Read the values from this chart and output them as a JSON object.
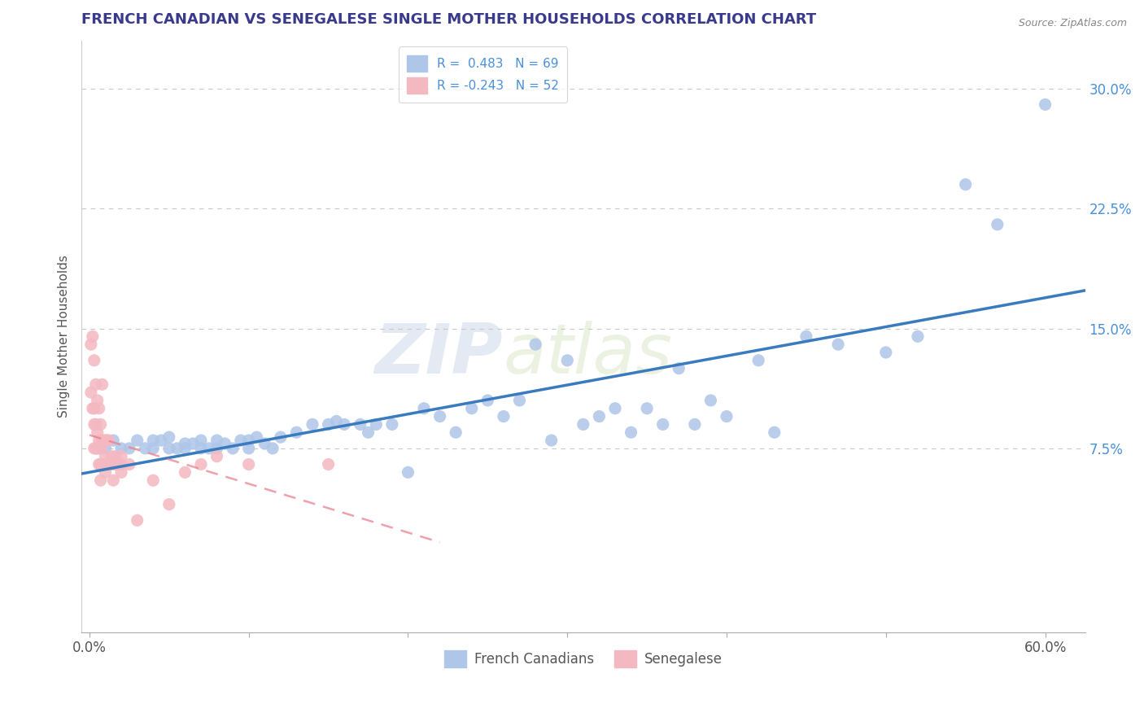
{
  "title": "FRENCH CANADIAN VS SENEGALESE SINGLE MOTHER HOUSEHOLDS CORRELATION CHART",
  "source": "Source: ZipAtlas.com",
  "ylabel": "Single Mother Households",
  "xlabel_ticks": [
    "0.0%",
    "",
    "",
    "",
    "",
    "",
    "60.0%"
  ],
  "xlabel_vals": [
    0.0,
    0.1,
    0.2,
    0.3,
    0.4,
    0.5,
    0.6
  ],
  "ytick_labels_right": [
    "7.5%",
    "15.0%",
    "22.5%",
    "30.0%"
  ],
  "ytick_vals": [
    0.075,
    0.15,
    0.225,
    0.3
  ],
  "ylim": [
    -0.04,
    0.33
  ],
  "xlim": [
    -0.005,
    0.625
  ],
  "legend_blue_label": "R =  0.483   N = 69",
  "legend_pink_label": "R = -0.243   N = 52",
  "legend_blue_color": "#aec6e8",
  "legend_pink_color": "#f4b8c1",
  "blue_scatter_color": "#aec6e8",
  "pink_scatter_color": "#f4b8c1",
  "blue_line_color": "#3a7abf",
  "pink_line_color": "#e87a8a",
  "watermark_text": "ZIPatlas",
  "title_color": "#3a3a8c",
  "title_fontsize": 13,
  "blue_x": [
    0.005,
    0.01,
    0.015,
    0.02,
    0.025,
    0.03,
    0.035,
    0.04,
    0.04,
    0.045,
    0.05,
    0.05,
    0.055,
    0.06,
    0.06,
    0.065,
    0.07,
    0.07,
    0.075,
    0.08,
    0.08,
    0.085,
    0.09,
    0.095,
    0.1,
    0.1,
    0.105,
    0.11,
    0.115,
    0.12,
    0.13,
    0.14,
    0.15,
    0.155,
    0.16,
    0.17,
    0.175,
    0.18,
    0.19,
    0.2,
    0.21,
    0.22,
    0.23,
    0.24,
    0.25,
    0.26,
    0.27,
    0.28,
    0.29,
    0.3,
    0.31,
    0.32,
    0.33,
    0.34,
    0.35,
    0.36,
    0.37,
    0.38,
    0.39,
    0.4,
    0.42,
    0.43,
    0.45,
    0.47,
    0.5,
    0.52,
    0.55,
    0.57,
    0.6
  ],
  "blue_y": [
    0.075,
    0.075,
    0.08,
    0.075,
    0.075,
    0.08,
    0.075,
    0.08,
    0.075,
    0.08,
    0.075,
    0.082,
    0.075,
    0.078,
    0.075,
    0.078,
    0.075,
    0.08,
    0.075,
    0.075,
    0.08,
    0.078,
    0.075,
    0.08,
    0.08,
    0.075,
    0.082,
    0.078,
    0.075,
    0.082,
    0.085,
    0.09,
    0.09,
    0.092,
    0.09,
    0.09,
    0.085,
    0.09,
    0.09,
    0.06,
    0.1,
    0.095,
    0.085,
    0.1,
    0.105,
    0.095,
    0.105,
    0.14,
    0.08,
    0.13,
    0.09,
    0.095,
    0.1,
    0.085,
    0.1,
    0.09,
    0.125,
    0.09,
    0.105,
    0.095,
    0.13,
    0.085,
    0.145,
    0.14,
    0.135,
    0.145,
    0.24,
    0.215,
    0.29
  ],
  "pink_x": [
    0.001,
    0.001,
    0.002,
    0.002,
    0.003,
    0.003,
    0.003,
    0.003,
    0.004,
    0.004,
    0.004,
    0.005,
    0.005,
    0.005,
    0.006,
    0.006,
    0.006,
    0.007,
    0.007,
    0.007,
    0.007,
    0.008,
    0.008,
    0.008,
    0.009,
    0.009,
    0.01,
    0.01,
    0.01,
    0.011,
    0.011,
    0.012,
    0.012,
    0.013,
    0.014,
    0.015,
    0.015,
    0.016,
    0.017,
    0.018,
    0.02,
    0.02,
    0.02,
    0.025,
    0.03,
    0.04,
    0.05,
    0.06,
    0.07,
    0.08,
    0.1,
    0.15
  ],
  "pink_y": [
    0.14,
    0.11,
    0.145,
    0.1,
    0.13,
    0.1,
    0.09,
    0.075,
    0.115,
    0.09,
    0.075,
    0.105,
    0.085,
    0.075,
    0.1,
    0.08,
    0.065,
    0.09,
    0.075,
    0.065,
    0.055,
    0.115,
    0.08,
    0.065,
    0.08,
    0.065,
    0.08,
    0.07,
    0.06,
    0.08,
    0.065,
    0.08,
    0.065,
    0.065,
    0.07,
    0.065,
    0.055,
    0.07,
    0.065,
    0.065,
    0.065,
    0.07,
    0.06,
    0.065,
    0.03,
    0.055,
    0.04,
    0.06,
    0.065,
    0.07,
    0.065,
    0.065
  ],
  "dashed_grid_color": "#c8c8c8",
  "background_color": "#ffffff",
  "legend_text_color": "#4a90d9",
  "legend_fontsize": 11,
  "axis_label_color": "#555555",
  "axis_tick_color": "#4a90d9"
}
